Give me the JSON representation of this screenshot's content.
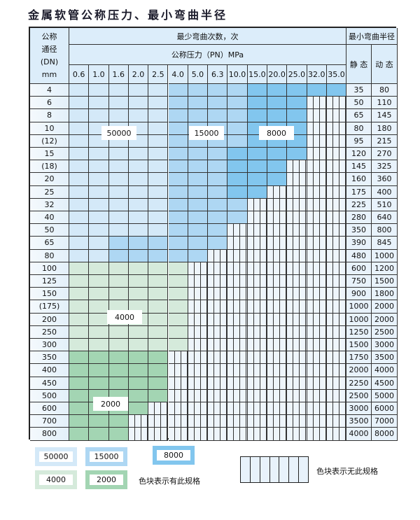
{
  "title": "金属软管公称压力、最小弯曲半径",
  "header": {
    "dn_label": [
      "公称",
      "通径",
      "(DN)",
      "mm"
    ],
    "bend_count": "最少弯曲次数，次",
    "pressure": "公称压力（PN）MPa",
    "radius": "最小弯曲半径",
    "static": "静 态",
    "dynamic": "动 态",
    "pn_values": [
      "0.6",
      "1.0",
      "1.6",
      "2.0",
      "2.5",
      "4.0",
      "5.0",
      "6.3",
      "10.0",
      "15.0",
      "20.0",
      "25.0",
      "32.0",
      "35.0"
    ]
  },
  "tier_colors": {
    "A": "#d4e9f8",
    "B": "#aed7f3",
    "C": "#82c6ee",
    "D": "#d5eadb",
    "E": "#a3d5b3"
  },
  "tiers": {
    "A": "50000",
    "B": "15000",
    "C": "8000",
    "D": "4000",
    "E": "2000"
  },
  "rows": [
    {
      "dn": "4",
      "static": "35",
      "dynamic": "80",
      "cells": "AAAAABBBBCCCCC"
    },
    {
      "dn": "6",
      "static": "50",
      "dynamic": "110",
      "cells": "AAAAABBBBCCCHH"
    },
    {
      "dn": "8",
      "static": "65",
      "dynamic": "145",
      "cells": "AAAAABBBBCCCHH"
    },
    {
      "dn": "10",
      "static": "80",
      "dynamic": "180",
      "cells": "AAAAABBBBCCCHH"
    },
    {
      "dn": "(12)",
      "static": "95",
      "dynamic": "215",
      "cells": "AAAAABBBBCCCHH"
    },
    {
      "dn": "15",
      "static": "120",
      "dynamic": "270",
      "cells": "AAAAABBBCCCCHH"
    },
    {
      "dn": "(18)",
      "static": "145",
      "dynamic": "325",
      "cells": "AAAAABBBCCCHHH"
    },
    {
      "dn": "20",
      "static": "160",
      "dynamic": "360",
      "cells": "AAAAABBBCCCHHH"
    },
    {
      "dn": "25",
      "static": "175",
      "dynamic": "400",
      "cells": "AAAAABBBCCHHHH"
    },
    {
      "dn": "32",
      "static": "225",
      "dynamic": "510",
      "cells": "AAAAABBBBHHHHH"
    },
    {
      "dn": "40",
      "static": "280",
      "dynamic": "640",
      "cells": "AAAAABBBBHHHHH"
    },
    {
      "dn": "50",
      "static": "350",
      "dynamic": "800",
      "cells": "AAAAABBBHHHHHH"
    },
    {
      "dn": "65",
      "static": "390",
      "dynamic": "845",
      "cells": "AABBBBBBHHHHHH"
    },
    {
      "dn": "80",
      "static": "480",
      "dynamic": "1000",
      "cells": "AABBBBBHHHHHHH"
    },
    {
      "dn": "100",
      "static": "600",
      "dynamic": "1200",
      "cells": "DDDDDDHHHHHHHH"
    },
    {
      "dn": "125",
      "static": "750",
      "dynamic": "1500",
      "cells": "DDDDDDHHHHHHHH"
    },
    {
      "dn": "150",
      "static": "900",
      "dynamic": "1800",
      "cells": "DDDDDDHHHHHHHH"
    },
    {
      "dn": "(175)",
      "static": "1000",
      "dynamic": "2000",
      "cells": "DDDDDDHHHHHHHH"
    },
    {
      "dn": "200",
      "static": "1000",
      "dynamic": "2000",
      "cells": "DDDDDDHHHHHHHH"
    },
    {
      "dn": "250",
      "static": "1250",
      "dynamic": "2500",
      "cells": "DDDDDDHHHHHHHH"
    },
    {
      "dn": "300",
      "static": "1500",
      "dynamic": "3000",
      "cells": "DDDDDDHHHHHHHH"
    },
    {
      "dn": "350",
      "static": "1750",
      "dynamic": "3500",
      "cells": "EEEEEHHHHHHHHH"
    },
    {
      "dn": "400",
      "static": "2000",
      "dynamic": "4000",
      "cells": "EEEEEHHHHHHHHH"
    },
    {
      "dn": "450",
      "static": "2250",
      "dynamic": "4500",
      "cells": "EEEEEHHHHHHHHH"
    },
    {
      "dn": "500",
      "static": "2500",
      "dynamic": "5000",
      "cells": "EEEEEHHHHHHHHH"
    },
    {
      "dn": "600",
      "static": "3000",
      "dynamic": "6000",
      "cells": "EEEEHHHHHHHHHH"
    },
    {
      "dn": "700",
      "static": "3500",
      "dynamic": "7000",
      "cells": "EEEHHHHHHHHHHH"
    },
    {
      "dn": "800",
      "static": "4000",
      "dynamic": "8000",
      "cells": "EEEHHHHHHHHHHH"
    }
  ],
  "legend": {
    "items": [
      "50000",
      "15000",
      "8000",
      "4000",
      "2000"
    ],
    "has_spec": "色块表示有此规格",
    "no_spec": "色块表示无此规格"
  }
}
